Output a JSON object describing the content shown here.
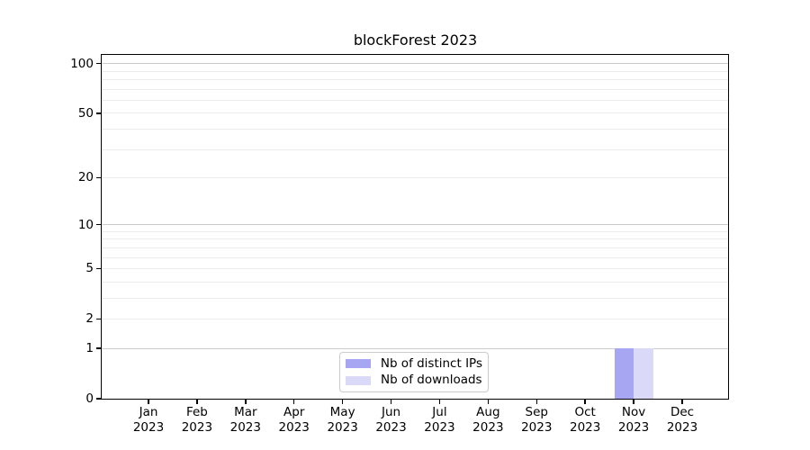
{
  "chart_data": {
    "type": "bar",
    "title": "blockForest 2023",
    "categories": [
      "Jan",
      "Feb",
      "Mar",
      "Apr",
      "May",
      "Jun",
      "Jul",
      "Aug",
      "Sep",
      "Oct",
      "Nov",
      "Dec"
    ],
    "x_tick_year": "2023",
    "series": [
      {
        "name": "Nb of distinct IPs",
        "color": "#a6a6f2",
        "values": [
          0,
          0,
          0,
          0,
          0,
          0,
          0,
          0,
          0,
          0,
          1,
          0
        ]
      },
      {
        "name": "Nb of downloads",
        "color": "#dadaf8",
        "values": [
          0,
          0,
          0,
          0,
          0,
          0,
          0,
          0,
          0,
          0,
          1,
          0
        ]
      }
    ],
    "y_axis": {
      "scale": "log1p",
      "ylim": [
        0,
        113
      ],
      "tick_values": [
        0,
        1,
        2,
        5,
        10,
        20,
        50,
        100
      ],
      "major_gridlines": [
        1,
        10,
        100
      ],
      "minor_gridlines": [
        2,
        3,
        4,
        5,
        6,
        7,
        8,
        9,
        20,
        30,
        40,
        50,
        60,
        70,
        80,
        90
      ]
    },
    "legend": {
      "position": "lower center"
    },
    "colors": {
      "major_grid": "#cccccc",
      "minor_grid": "#ebebeb",
      "spine": "#000000",
      "background": "#ffffff",
      "text": "#000000"
    }
  }
}
